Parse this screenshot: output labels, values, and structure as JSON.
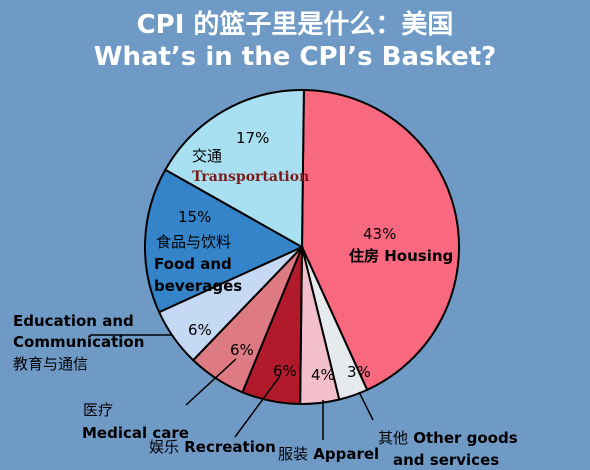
{
  "title_cn": "CPI 的篮子里是什么：美国",
  "title_en": "What’s in the CPI’s Basket?",
  "chart_data": {
    "type": "pie",
    "categories": [
      "Housing",
      "Other goods and services",
      "Apparel",
      "Recreation",
      "Medical care",
      "Education and Communication",
      "Food and beverages",
      "Transportation"
    ],
    "values": [
      43,
      3,
      4,
      6,
      6,
      6,
      15,
      17
    ],
    "value_labels": [
      "43%",
      "3%",
      "4%",
      "6%",
      "6%",
      "6%",
      "15%",
      "17%"
    ],
    "colors": [
      "#f8687f",
      "#e7eaed",
      "#f3bfcd",
      "#b01a2a",
      "#de7a82",
      "#c6d9f4",
      "#3584c9",
      "#a9e0f1"
    ],
    "labels": {
      "housing_cn": "住房",
      "housing_en": "Housing",
      "other_cn": "其他",
      "other_en_1": "Other goods",
      "other_en_2": "and services",
      "apparel_cn": "服装",
      "apparel_en": "Apparel",
      "recreation_cn": "娱乐",
      "recreation_en": "Recreation",
      "medical_cn": "医疗",
      "medical_en": "Medical care",
      "education_en_1": "Education and",
      "education_en_2": "Communication",
      "education_cn": "教育与通信",
      "food_cn": "食品与饮料",
      "food_en_1": "Food and",
      "food_en_2": "beverages",
      "transport_cn": "交通",
      "transport_en": "Transportation"
    }
  }
}
